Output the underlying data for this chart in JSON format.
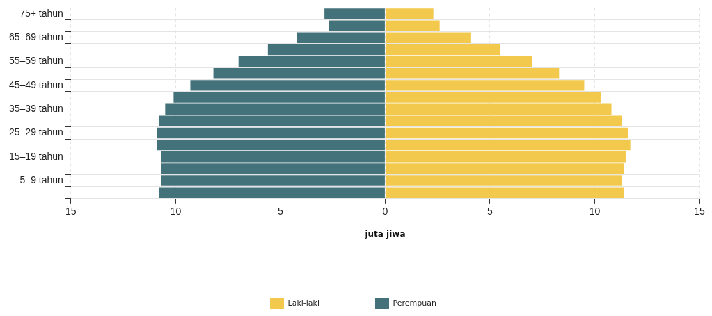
{
  "chart_data": {
    "type": "bar",
    "orientation": "horizontal",
    "stacked": true,
    "categories": [
      "75+ tahun",
      null,
      "65–69 tahun",
      null,
      "55–59 tahun",
      null,
      "45–49 tahun",
      null,
      "35–39 tahun",
      null,
      "25–29 tahun",
      null,
      "15–19 tahun",
      null,
      "5–9 tahun",
      null
    ],
    "series": [
      {
        "name": "Laki-laki",
        "color": "#f2c94c",
        "values": [
          2.3,
          2.6,
          4.1,
          5.5,
          7.0,
          8.3,
          9.5,
          10.3,
          10.8,
          11.3,
          11.6,
          11.7,
          11.5,
          11.4,
          11.3,
          11.4
        ]
      },
      {
        "name": "Perempuan",
        "color": "#44727a",
        "values": [
          -2.9,
          -2.7,
          -4.2,
          -5.6,
          -7.0,
          -8.2,
          -9.3,
          -10.1,
          -10.5,
          -10.8,
          -10.9,
          -10.9,
          -10.7,
          -10.7,
          -10.7,
          -10.8
        ]
      }
    ],
    "xlim": [
      -15,
      15
    ],
    "xticks": [
      {
        "value": -15,
        "label": "15"
      },
      {
        "value": -10,
        "label": "10"
      },
      {
        "value": -5,
        "label": "5"
      },
      0,
      5,
      10,
      15
    ],
    "xlabel": "juta jiwa",
    "grid": true,
    "legend": "bottom"
  }
}
